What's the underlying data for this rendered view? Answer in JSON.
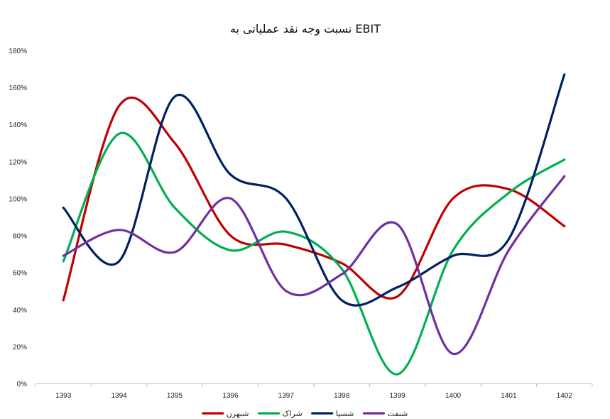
{
  "chart_data": {
    "type": "line",
    "title": "نسبت وجه نقد عملیاتی به EBIT",
    "xlabel": "",
    "ylabel": "",
    "categories": [
      "1393",
      "1394",
      "1395",
      "1396",
      "1397",
      "1398",
      "1399",
      "1400",
      "1401",
      "1402"
    ],
    "y_ticks": [
      "0%",
      "20%",
      "40%",
      "60%",
      "80%",
      "100%",
      "120%",
      "140%",
      "160%",
      "180%"
    ],
    "ylim": [
      0,
      180
    ],
    "smooth": true,
    "grid": false,
    "legend_position": "bottom",
    "series": [
      {
        "name": "شبهرن",
        "color": "#C00000",
        "values": [
          45,
          150,
          130,
          80,
          75,
          65,
          47,
          100,
          105,
          85
        ]
      },
      {
        "name": "شراک",
        "color": "#00B050",
        "values": [
          66,
          135,
          95,
          72,
          82,
          62,
          5,
          72,
          103,
          121
        ]
      },
      {
        "name": "شسپا",
        "color": "#002060",
        "values": [
          95,
          66,
          155,
          113,
          100,
          45,
          52,
          69,
          78,
          167
        ]
      },
      {
        "name": "شنفت",
        "color": "#7030A0",
        "values": [
          69,
          83,
          71,
          100,
          50,
          59,
          86,
          16,
          72,
          112
        ]
      }
    ]
  }
}
